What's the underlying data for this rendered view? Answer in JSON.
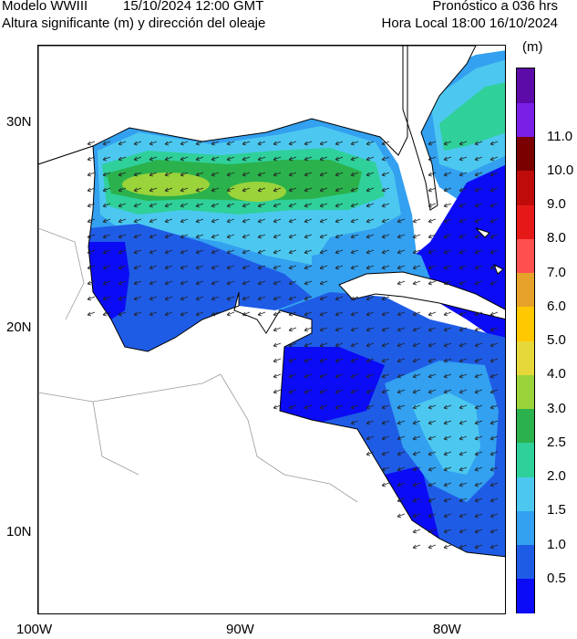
{
  "header": {
    "model": "Modelo WWIII",
    "init_time": "15/10/2024 12:00 GMT",
    "subtitle": "Altura significante (m) y dirección del oleaje",
    "forecast": "Pronóstico a 036 hrs",
    "local_time": "Hora Local 18:00 16/10/2024"
  },
  "axes": {
    "lat_labels": [
      "30N",
      "20N",
      "10N"
    ],
    "lon_labels": [
      "100W",
      "90W",
      "80W"
    ]
  },
  "colorbar": {
    "unit": "(m)",
    "labels": [
      "0.5",
      "1.0",
      "1.5",
      "2.0",
      "2.5",
      "3.0",
      "4.0",
      "5.0",
      "6.0",
      "7.0",
      "8.0",
      "9.0",
      "10.0",
      "11.0"
    ],
    "colors": [
      "#0b0bf5",
      "#1f5ce6",
      "#33a0f0",
      "#4cc8f0",
      "#2fd09a",
      "#2bb24c",
      "#9bd33a",
      "#e6d83a",
      "#ffc800",
      "#e6a22b",
      "#ff5050",
      "#e61919",
      "#c00b0b",
      "#7a0000",
      "#7a1fe6",
      "#5c0aa8"
    ]
  },
  "chart_data": {
    "type": "heatmap",
    "title": "Altura significante (m) y dirección del oleaje",
    "variable": "significant wave height (m)",
    "dominant_wave_direction": "from NE toward SW",
    "lat_range": [
      7,
      33
    ],
    "lon_range": [
      -100,
      -77
    ],
    "regions": [
      {
        "area": "Central Gulf of Mexico",
        "height_range_m": [
          2.0,
          3.0
        ]
      },
      {
        "area": "Gulf of Mexico maximum band (~27N, 93-96W)",
        "height_range_m": [
          3.0,
          4.0
        ]
      },
      {
        "area": "Western Gulf / Bay of Campeche",
        "height_range_m": [
          0.5,
          1.0
        ]
      },
      {
        "area": "Atlantic east of Florida (~30N, 79W)",
        "height_range_m": [
          2.0,
          2.5
        ]
      },
      {
        "area": "Yucatan Channel / Florida Straits",
        "height_range_m": [
          1.0,
          1.5
        ]
      },
      {
        "area": "Western Caribbean",
        "height_range_m": [
          0.5,
          1.0
        ]
      },
      {
        "area": "Southwestern Caribbean (~13-15N, 80W)",
        "height_range_m": [
          1.0,
          2.0
        ]
      }
    ]
  }
}
